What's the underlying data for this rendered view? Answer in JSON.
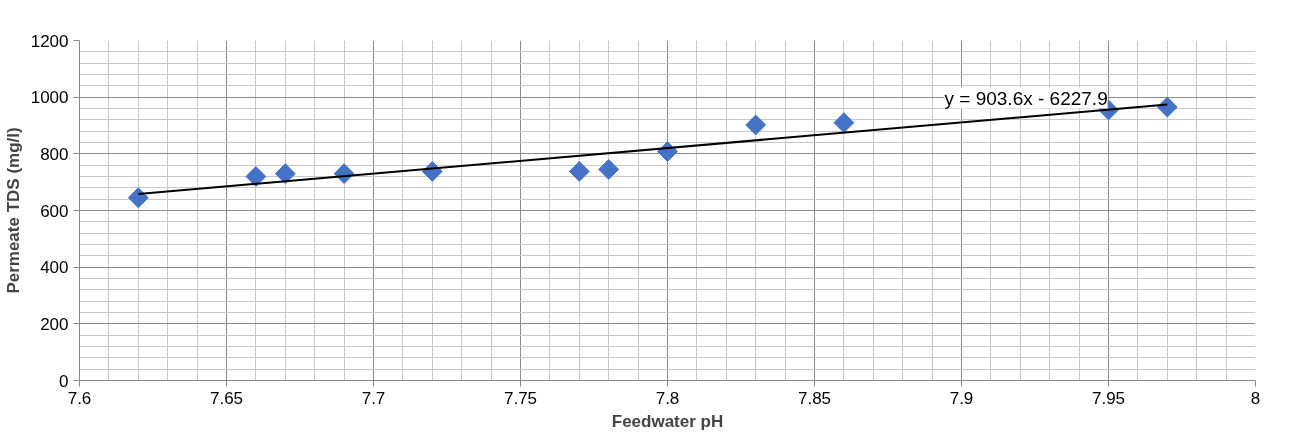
{
  "chart_data": {
    "type": "scatter",
    "xlabel": "Feedwater pH",
    "ylabel": "Permeate TDS (mg/l)",
    "x": [
      7.62,
      7.66,
      7.67,
      7.69,
      7.72,
      7.77,
      7.78,
      7.8,
      7.83,
      7.86,
      7.95,
      7.97
    ],
    "series": [
      {
        "marker": "diamond",
        "color": "#4472c4",
        "values": [
          645,
          720,
          730,
          730,
          738,
          738,
          745,
          808,
          902,
          910,
          955,
          965
        ]
      },
      {
        "type": "line",
        "color": "#000000",
        "x": [
          7.62,
          7.97
        ],
        "values": [
          658,
          974
        ]
      }
    ],
    "annotations": [
      "y = 903.6x - 6227.9"
    ],
    "xlim": [
      7.6,
      8
    ],
    "ylim": [
      0,
      1200
    ],
    "xticks": [
      7.6,
      7.65,
      7.7,
      7.75,
      7.8,
      7.85,
      7.9,
      7.95,
      8
    ],
    "yticks": [
      0,
      200,
      400,
      600,
      800,
      1000,
      1200
    ],
    "grid": true
  }
}
